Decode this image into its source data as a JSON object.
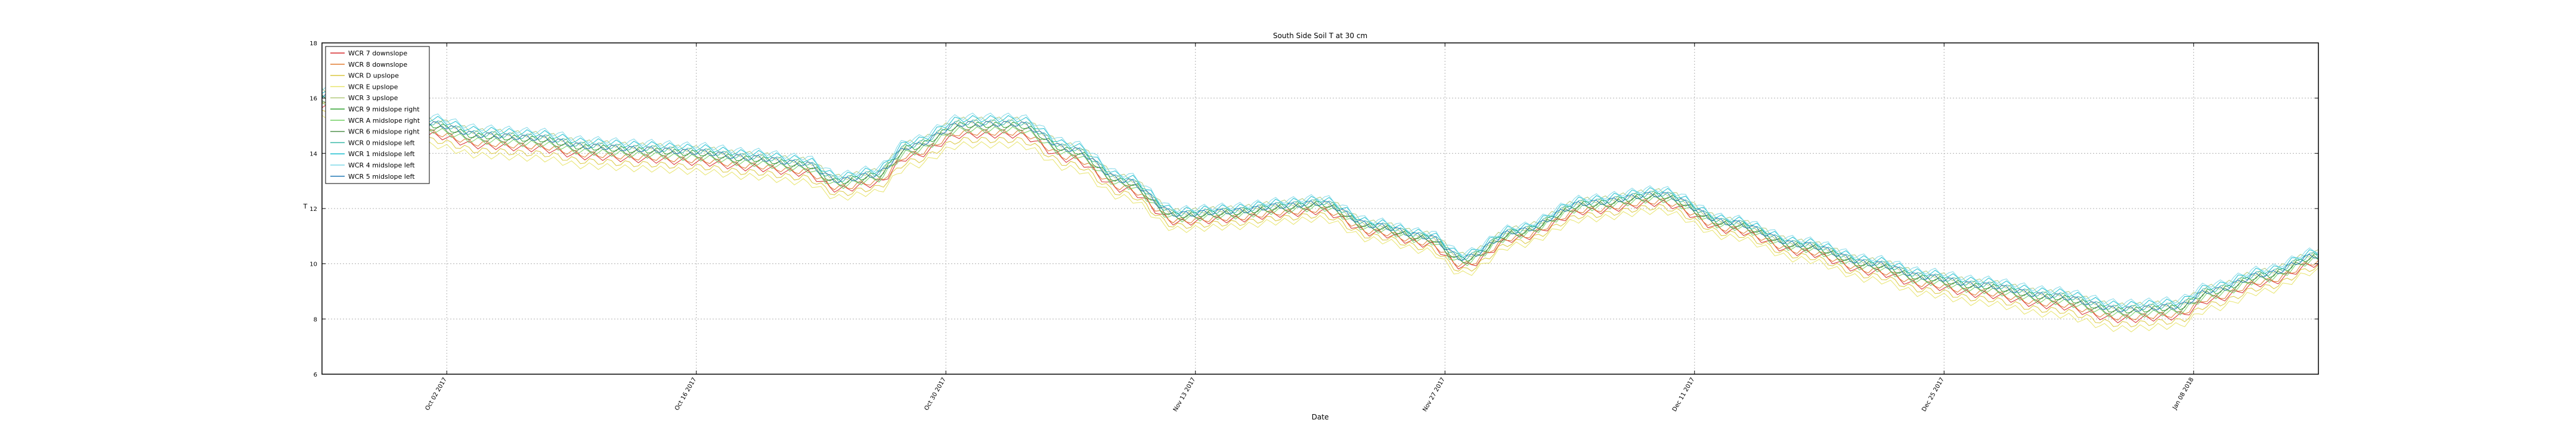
{
  "chart_data": {
    "type": "line",
    "title": "South Side Soil T at 30 cm",
    "xlabel": "Date",
    "ylabel": "T",
    "xlim": [
      "2017-09-25",
      "2018-01-15"
    ],
    "ylim": [
      6,
      18
    ],
    "yticks": [
      6,
      8,
      10,
      12,
      14,
      16,
      18
    ],
    "xticks": [
      {
        "date": "2017-10-02",
        "label": "Oct 02 2017"
      },
      {
        "date": "2017-10-16",
        "label": "Oct 16 2017"
      },
      {
        "date": "2017-10-30",
        "label": "Oct 30 2017"
      },
      {
        "date": "2017-11-13",
        "label": "Nov 13 2017"
      },
      {
        "date": "2017-11-27",
        "label": "Nov 27 2017"
      },
      {
        "date": "2017-12-11",
        "label": "Dec 11 2017"
      },
      {
        "date": "2017-12-25",
        "label": "Dec 25 2017"
      },
      {
        "date": "2018-01-08",
        "label": "Jan 08 2018"
      }
    ],
    "grid": true,
    "legend_position": "upper-left",
    "base_curve": {
      "dates": [
        "2017-09-25",
        "2017-09-28",
        "2017-10-01",
        "2017-10-04",
        "2017-10-07",
        "2017-10-10",
        "2017-10-13",
        "2017-10-16",
        "2017-10-19",
        "2017-10-22",
        "2017-10-24",
        "2017-10-26",
        "2017-10-28",
        "2017-10-31",
        "2017-11-03",
        "2017-11-06",
        "2017-11-09",
        "2017-11-12",
        "2017-11-15",
        "2017-11-18",
        "2017-11-20",
        "2017-11-23",
        "2017-11-26",
        "2017-11-28",
        "2017-12-01",
        "2017-12-05",
        "2017-12-09",
        "2017-12-13",
        "2017-12-17",
        "2017-12-21",
        "2017-12-24",
        "2017-12-27",
        "2017-12-31",
        "2018-01-04",
        "2018-01-07",
        "2018-01-09",
        "2018-01-12",
        "2018-01-15"
      ],
      "values": [
        15.8,
        15.3,
        14.8,
        14.4,
        14.3,
        14.0,
        13.9,
        13.8,
        13.6,
        13.4,
        12.8,
        13.0,
        14.0,
        14.8,
        14.8,
        13.9,
        12.8,
        11.6,
        11.7,
        11.9,
        12.0,
        11.2,
        10.8,
        10.0,
        11.0,
        12.0,
        12.3,
        11.3,
        10.5,
        9.8,
        9.3,
        9.0,
        8.6,
        8.1,
        8.2,
        8.8,
        9.4,
        10.1
      ]
    },
    "series": [
      {
        "name": "WCR 7 downslope",
        "color": "#d62728",
        "offset": -0.15
      },
      {
        "name": "WCR 8 downslope",
        "color": "#e07a2e",
        "offset": -0.05
      },
      {
        "name": "WCR D upslope",
        "color": "#d9c53a",
        "offset": -0.35
      },
      {
        "name": "WCR E upslope",
        "color": "#e8e46a",
        "offset": -0.55
      },
      {
        "name": "WCR 3 upslope",
        "color": "#b0c97a",
        "offset": 0.45
      },
      {
        "name": "WCR 9 midslope right",
        "color": "#2ca02c",
        "offset": 0.25
      },
      {
        "name": "WCR A midslope right",
        "color": "#6fcf5f",
        "offset": 0.05
      },
      {
        "name": "WCR 6 midslope right",
        "color": "#4f8f4a",
        "offset": 0.15
      },
      {
        "name": "WCR 0 midslope left",
        "color": "#38b8a8",
        "offset": 0.35
      },
      {
        "name": "WCR 1 midslope left",
        "color": "#17becf",
        "offset": 0.5
      },
      {
        "name": "WCR 4 midslope left",
        "color": "#7fd8e8",
        "offset": 0.6
      },
      {
        "name": "WCR 5 midslope left",
        "color": "#1f77b4",
        "offset": 0.3
      }
    ]
  }
}
